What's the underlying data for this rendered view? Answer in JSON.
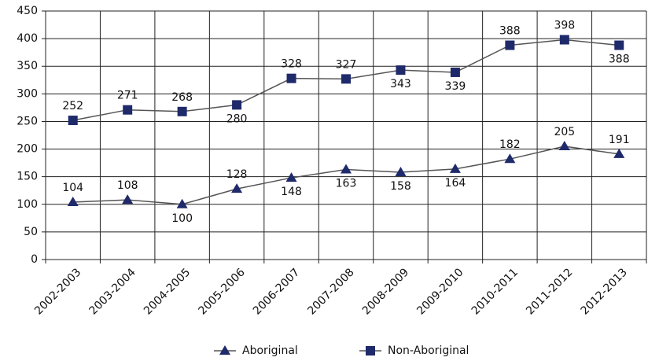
{
  "chart_data": {
    "type": "line",
    "categories": [
      "2002-2003",
      "2003-2004",
      "2004-2005",
      "2005-2006",
      "2006-2007",
      "2007-2008",
      "2008-2009",
      "2009-2010",
      "2010-2011",
      "2011-2012",
      "2012-2013"
    ],
    "series": [
      {
        "name": "Aboriginal",
        "color": "#1f2a6b",
        "marker": "triangle",
        "values": [
          104,
          108,
          100,
          128,
          148,
          163,
          158,
          164,
          182,
          205,
          191
        ]
      },
      {
        "name": "Non-Aboriginal",
        "color": "#1f2a6b",
        "marker": "square",
        "values": [
          252,
          271,
          268,
          280,
          328,
          327,
          343,
          339,
          388,
          398,
          388
        ]
      }
    ],
    "ylim": [
      0,
      450
    ],
    "yticks": [
      0,
      50,
      100,
      150,
      200,
      250,
      300,
      350,
      400,
      450
    ],
    "grid": true,
    "legend": "bottom"
  }
}
